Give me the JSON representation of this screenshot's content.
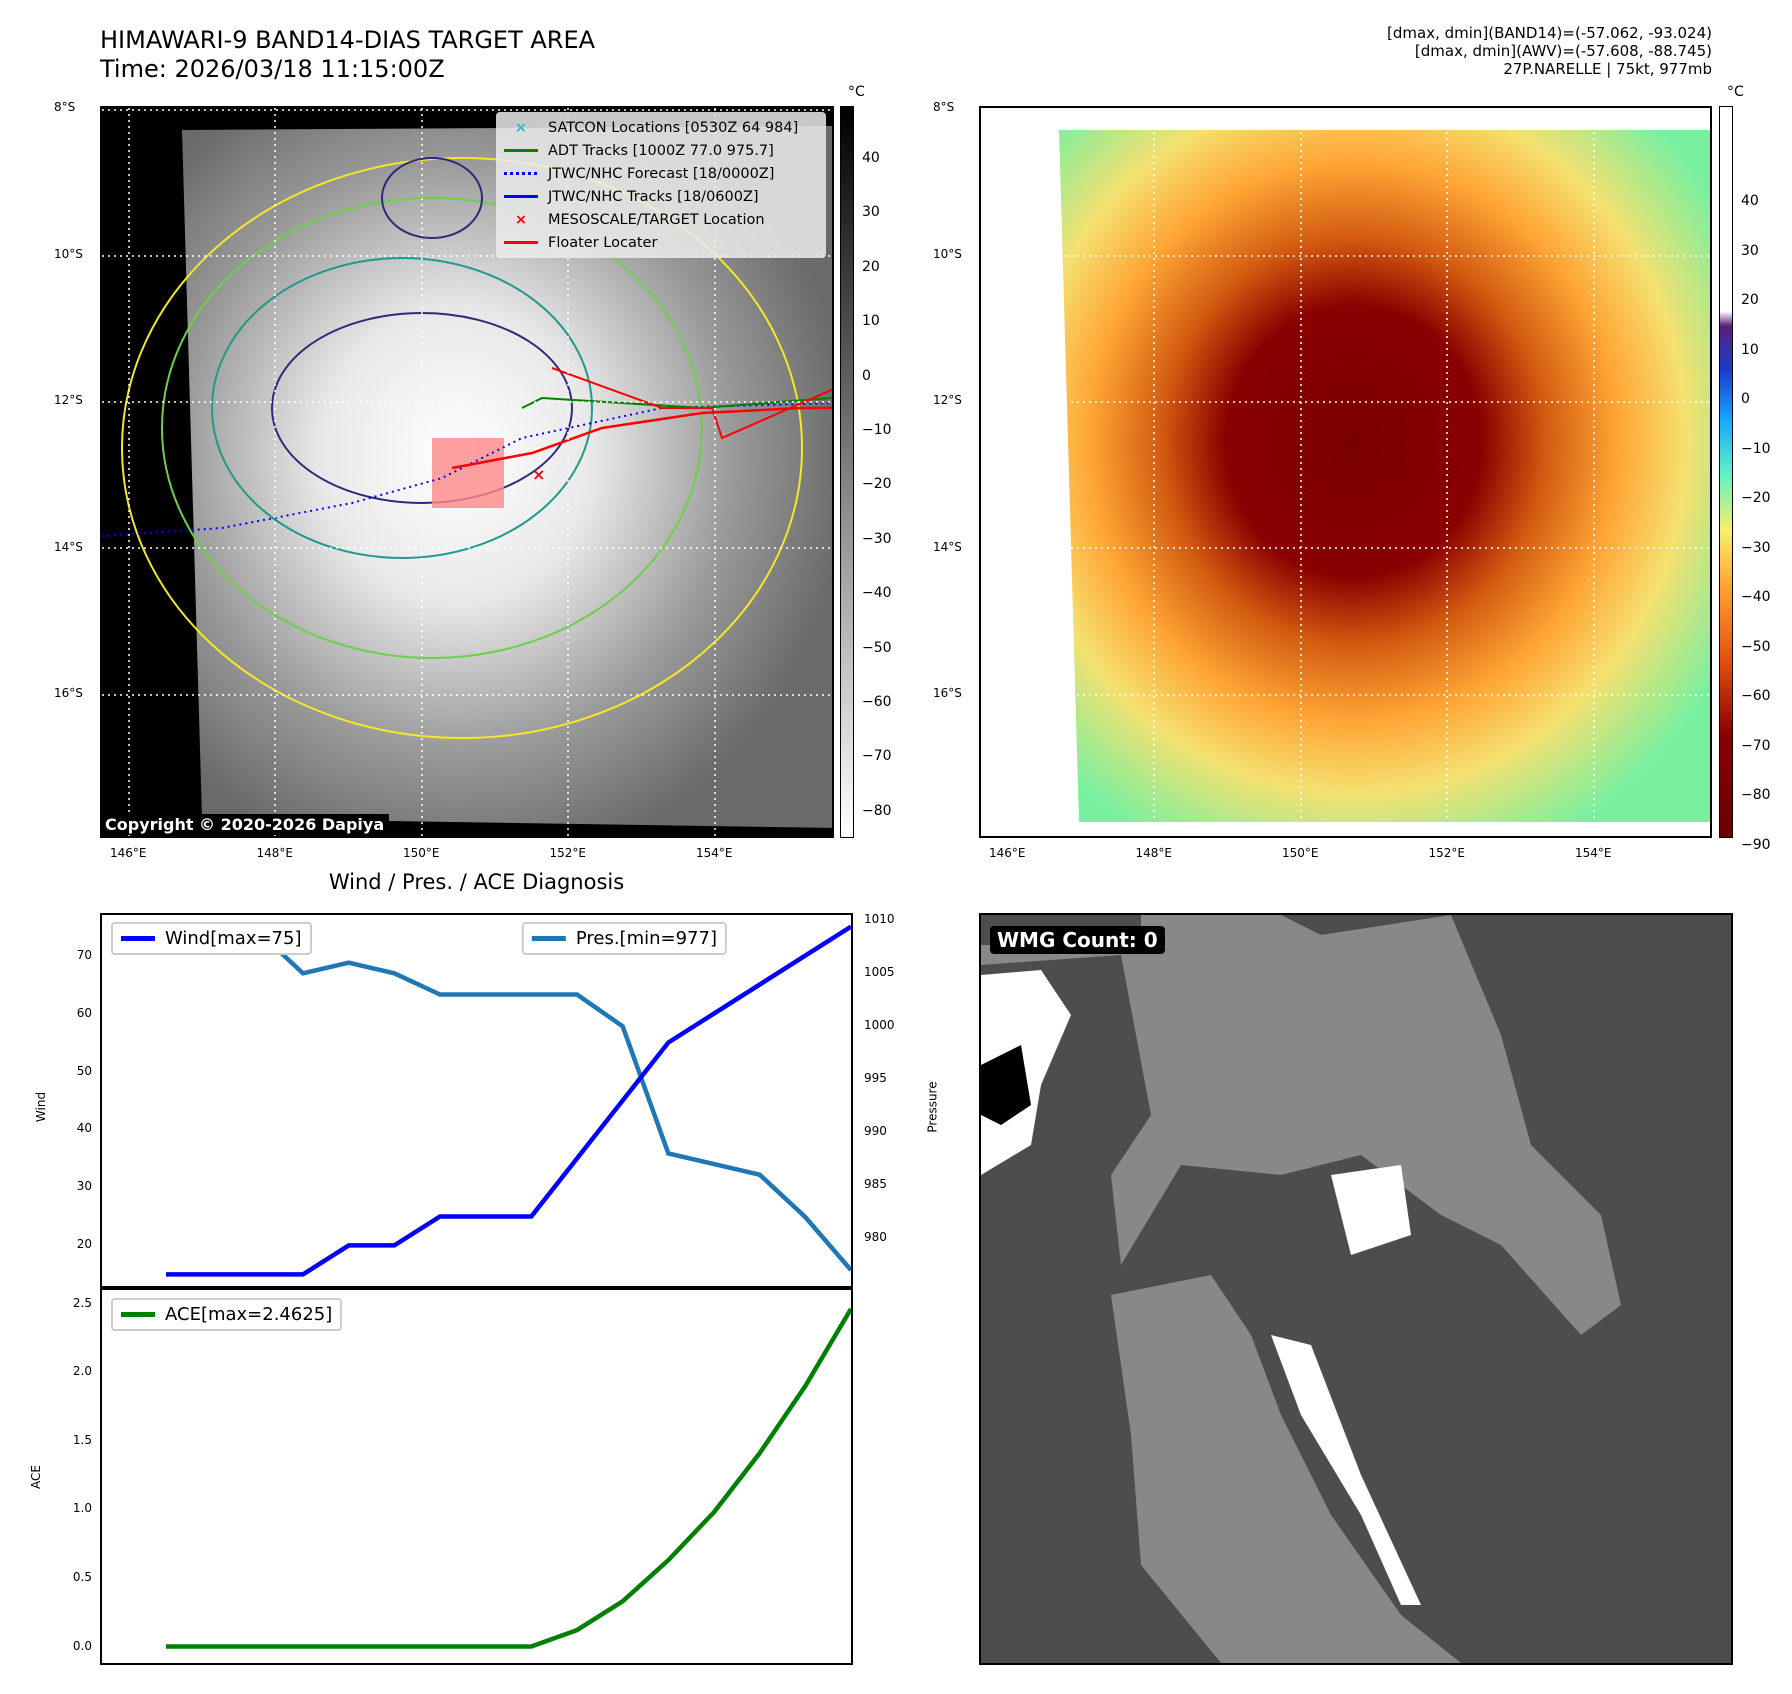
{
  "header": {
    "title": "HIMAWARI-9 BAND14-DIAS TARGET AREA",
    "time": "Time: 2026/03/18 11:15:00Z",
    "info1": "[dmax, dmin](BAND14)=(-57.062, -93.024)",
    "info2": "[dmax, dmin](AWV)=(-57.608, -88.745)",
    "info3": "27P.NARELLE | 75kt, 977mb"
  },
  "maps": {
    "lat_ticks": [
      "8°S",
      "10°S",
      "12°S",
      "14°S",
      "16°S"
    ],
    "lon_ticks": [
      "146°E",
      "148°E",
      "150°E",
      "152°E",
      "154°E"
    ],
    "cbar_unit": "°C",
    "cbar1_ticks": [
      "40",
      "30",
      "20",
      "10",
      "0",
      "−10",
      "−20",
      "−30",
      "−40",
      "−50",
      "−60",
      "−70",
      "−80"
    ],
    "cbar2_ticks": [
      "40",
      "30",
      "20",
      "10",
      "0",
      "−10",
      "−20",
      "−30",
      "−40",
      "−50",
      "−60",
      "−70",
      "−80",
      "−90"
    ],
    "copyright": "Copyright © 2020-2026 Dapiya"
  },
  "legend": [
    {
      "label": "SATCON Locations [0530Z 64 984]",
      "color": "#17becf",
      "marker": "x"
    },
    {
      "label": "ADT Tracks [1000Z 77.0 975.7]",
      "color": "#008000",
      "marker": "line"
    },
    {
      "label": "JTWC/NHC Forecast [18/0000Z]",
      "color": "#0000ff",
      "marker": "dotted"
    },
    {
      "label": "JTWC/NHC Tracks [18/0600Z]",
      "color": "#0000ff",
      "marker": "line-dot"
    },
    {
      "label": "MESOSCALE/TARGET Location",
      "color": "#ff0000",
      "marker": "x"
    },
    {
      "label": "Floater Locater",
      "color": "#ff0000",
      "marker": "line"
    }
  ],
  "wmg": {
    "label": "WMG Count: 0"
  },
  "chart_data": [
    {
      "type": "line",
      "title": "Wind / Pres. / ACE Diagnosis",
      "ylabel": "Wind",
      "y2label": "Pressure",
      "ylim": [
        13,
        77
      ],
      "y2lim": [
        975.5,
        1010.5
      ],
      "yticks": [
        20,
        30,
        40,
        50,
        60,
        70
      ],
      "y2ticks": [
        980,
        985,
        990,
        995,
        1000,
        1005,
        1010
      ],
      "series": [
        {
          "name": "Wind[max=75]",
          "axis": "left",
          "color": "#0000ff",
          "values": [
            15,
            15,
            15,
            15,
            20,
            20,
            25,
            25,
            25,
            35,
            45,
            55,
            60,
            65,
            70,
            75
          ]
        },
        {
          "name": "Pres.[min=977]",
          "axis": "right",
          "color": "#1f77b4",
          "values": [
            1009,
            1009,
            1009,
            1005,
            1006,
            1005,
            1003,
            1003,
            1003,
            1003,
            1000,
            988,
            987,
            986,
            982,
            977
          ]
        }
      ]
    },
    {
      "type": "line",
      "ylabel": "ACE",
      "ylim": [
        -0.12,
        2.6
      ],
      "yticks": [
        "0.0",
        "0.5",
        "1.0",
        "1.5",
        "2.0",
        "2.5"
      ],
      "series": [
        {
          "name": "ACE[max=2.4625]",
          "color": "#008000",
          "values": [
            0,
            0,
            0,
            0,
            0,
            0,
            0,
            0,
            0,
            0.12,
            0.33,
            0.63,
            0.98,
            1.41,
            1.9,
            2.4625
          ]
        }
      ]
    }
  ]
}
